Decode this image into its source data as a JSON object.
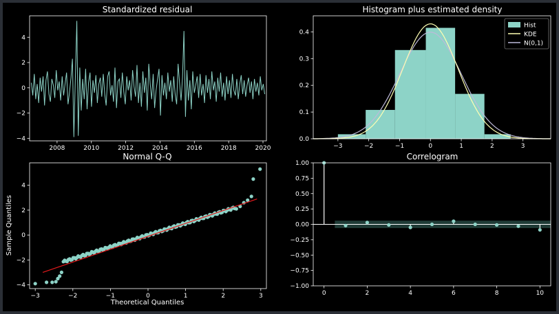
{
  "figure": {
    "background": "#000000",
    "frame_color": "#2b2f36",
    "text_color": "#ffffff"
  },
  "chart_data": [
    {
      "id": "resid",
      "type": "line",
      "title": "Standardized residual",
      "xlabel": "",
      "ylabel": "",
      "xlim": [
        2006.4,
        2020.2
      ],
      "ylim": [
        -4.2,
        5.7
      ],
      "x_ticks": [
        2008,
        2010,
        2012,
        2014,
        2016,
        2018,
        2020
      ],
      "y_ticks": [
        -4,
        -2,
        0,
        2,
        4
      ],
      "series": [
        {
          "color": "#8dd3c7",
          "x_start": 2006.5,
          "x_end": 2020.1,
          "count": 160,
          "values": [
            0.4,
            -0.6,
            1.1,
            -0.9,
            0.3,
            -1.2,
            0.8,
            -0.3,
            0.9,
            -1.4,
            0.6,
            1.3,
            -0.5,
            -1.1,
            0.7,
            0.2,
            -0.8,
            1.4,
            -0.2,
            0.5,
            -1.0,
            0.9,
            -0.6,
            0.3,
            1.2,
            -1.3,
            -0.4,
            0.8,
            2.3,
            -3.9,
            0.9,
            5.3,
            -3.8,
            1.6,
            -1.8,
            0.7,
            -0.9,
            1.5,
            -1.7,
            0.4,
            1.2,
            -1.5,
            0.6,
            -0.4,
            1.0,
            -1.2,
            0.3,
            0.8,
            -0.7,
            1.1,
            -0.5,
            -1.4,
            0.9,
            1.3,
            -0.6,
            0.2,
            -1.1,
            1.6,
            -1.6,
            0.5,
            0.7,
            -0.8,
            1.2,
            -0.3,
            -1.3,
            0.9,
            -0.2,
            0.6,
            -1.0,
            1.4,
            0.1,
            -0.7,
            1.8,
            -1.2,
            0.4,
            -1.5,
            1.3,
            -0.4,
            0.8,
            -1.8,
            1.9,
            0.3,
            -0.9,
            1.1,
            -1.6,
            -0.2,
            0.7,
            1.5,
            -2.2,
            1.0,
            -0.6,
            0.4,
            -0.9,
            1.2,
            -0.3,
            0.6,
            -1.1,
            0.9,
            -0.5,
            -1.3,
            1.9,
            0.4,
            -1.0,
            0.8,
            4.5,
            -2.3,
            1.4,
            -1.0,
            0.6,
            -1.7,
            1.3,
            -0.4,
            0.2,
            0.9,
            -0.8,
            1.1,
            -0.6,
            0.3,
            -1.2,
            1.0,
            -0.4,
            0.7,
            -0.9,
            1.3,
            -0.2,
            0.5,
            -1.1,
            0.8,
            -0.3,
            1.2,
            -0.7,
            0.4,
            -1.0,
            0.9,
            -0.5,
            0.6,
            -0.8,
            1.1,
            -0.2,
            -0.6,
            0.7,
            -0.9,
            0.3,
            1.0,
            -0.5,
            0.6,
            -0.7,
            0.2,
            0.8,
            -0.4,
            0.5,
            -0.9,
            0.7,
            -0.3,
            0.4,
            -0.6,
            0.9,
            -0.2,
            0.3,
            -0.5
          ]
        }
      ]
    },
    {
      "id": "hist",
      "type": "bar",
      "title": "Histogram plus estimated density",
      "xlabel": "",
      "ylabel": "",
      "xlim": [
        -3.8,
        3.9
      ],
      "ylim": [
        0,
        0.46
      ],
      "x_ticks": [
        -3,
        -2,
        -1,
        0,
        1,
        2,
        3
      ],
      "y_ticks": [
        0.0,
        0.1,
        0.2,
        0.3,
        0.4
      ],
      "y_tick_labels": [
        "0.0",
        "0.1",
        "0.2",
        "0.3",
        "0.4"
      ],
      "legend_position": "top-right",
      "legend": [
        "Hist",
        "KDE",
        "N(0,1)"
      ],
      "bins": [
        {
          "x0": -3.0,
          "x1": -2.1,
          "value": 0.017
        },
        {
          "x0": -2.1,
          "x1": -1.15,
          "value": 0.108
        },
        {
          "x0": -1.15,
          "x1": -0.15,
          "value": 0.332
        },
        {
          "x0": -0.15,
          "x1": 0.8,
          "value": 0.415
        },
        {
          "x0": 0.8,
          "x1": 1.75,
          "value": 0.168
        },
        {
          "x0": 1.75,
          "x1": 2.6,
          "value": 0.017
        }
      ],
      "hist_color": "#8dd3c7",
      "kde_color": "#ffffb3",
      "normal_color": "#bebada",
      "kde": {
        "peak": 0.43,
        "center": 0.0,
        "sigma": 0.9
      }
    },
    {
      "id": "qq",
      "type": "scatter",
      "title": "Normal Q-Q",
      "xlabel": "Theoretical Quantiles",
      "ylabel": "Sample Quantiles",
      "xlim": [
        -3.15,
        3.15
      ],
      "ylim": [
        -4.3,
        5.8
      ],
      "x_ticks": [
        -3,
        -2,
        -1,
        0,
        1,
        2,
        3
      ],
      "y_ticks": [
        -4,
        -2,
        0,
        2,
        4
      ],
      "point_color": "#8dd3c7",
      "line_color": "#e41a1c",
      "reference_line": [
        [
          -2.8,
          -3.0
        ],
        [
          2.9,
          2.9
        ]
      ],
      "outliers": [
        [
          -3.0,
          -3.9
        ],
        [
          -2.7,
          -3.8
        ],
        [
          -2.55,
          -3.8
        ],
        [
          -2.45,
          -3.75
        ],
        [
          -2.4,
          -3.5
        ],
        [
          -2.35,
          -3.3
        ],
        [
          -2.3,
          -3.0
        ],
        [
          2.35,
          2.1
        ],
        [
          2.45,
          2.3
        ],
        [
          2.55,
          2.6
        ],
        [
          2.65,
          2.8
        ],
        [
          2.75,
          3.1
        ],
        [
          2.8,
          4.5
        ],
        [
          2.98,
          5.3
        ]
      ]
    },
    {
      "id": "acf",
      "type": "bar",
      "title": "Correlogram",
      "xlabel": "",
      "ylabel": "",
      "xlim": [
        -0.5,
        10.5
      ],
      "ylim": [
        -1.0,
        1.0
      ],
      "x_ticks": [
        0,
        2,
        4,
        6,
        8,
        10
      ],
      "y_ticks": [
        -1.0,
        -0.75,
        -0.5,
        -0.25,
        0.0,
        0.25,
        0.5,
        0.75,
        1.0
      ],
      "y_tick_labels": [
        "−1.00",
        "−0.75",
        "−0.50",
        "−0.25",
        "0.00",
        "0.25",
        "0.50",
        "0.75",
        "1.00"
      ],
      "lags": [
        0,
        1,
        2,
        3,
        4,
        5,
        6,
        7,
        8,
        9,
        10
      ],
      "values": [
        1.0,
        -0.02,
        0.03,
        -0.01,
        -0.05,
        0.0,
        0.05,
        0.0,
        -0.01,
        -0.03,
        -0.09
      ],
      "confidence_band": [
        -0.06,
        0.06
      ],
      "stem_color": "#8dd3c7",
      "band_color": "#1f3b36"
    }
  ]
}
